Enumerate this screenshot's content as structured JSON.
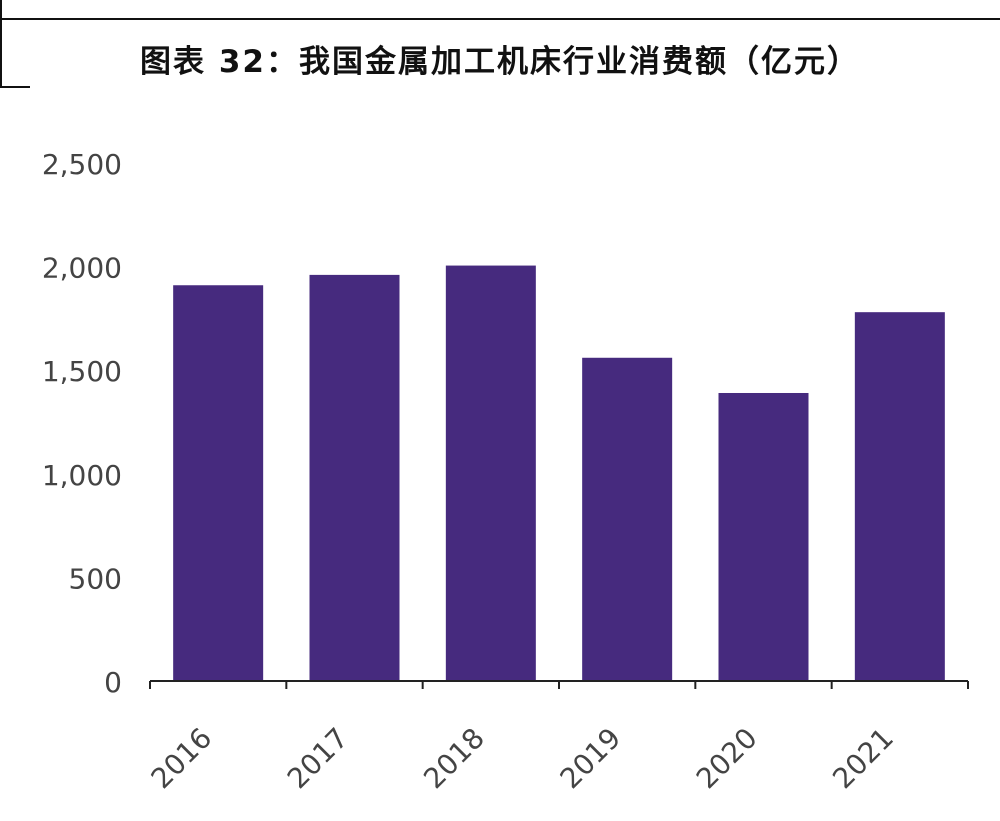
{
  "chart_data": {
    "type": "bar",
    "title": "图表 32：我国金属加工机床行业消费额（亿元）",
    "categories": [
      "2016",
      "2017",
      "2018",
      "2019",
      "2020",
      "2021"
    ],
    "values": [
      1910,
      1960,
      2005,
      1560,
      1390,
      1780
    ],
    "ylim": [
      0,
      2500
    ],
    "yticks": [
      0,
      500,
      1000,
      1500,
      2000,
      2500
    ],
    "ytick_labels": [
      "0",
      "500",
      "1,000",
      "1,500",
      "2,000",
      "2,500"
    ],
    "xlabel": "",
    "ylabel": "",
    "grid": false,
    "legend": "none",
    "bar_color": "#462a7e"
  }
}
